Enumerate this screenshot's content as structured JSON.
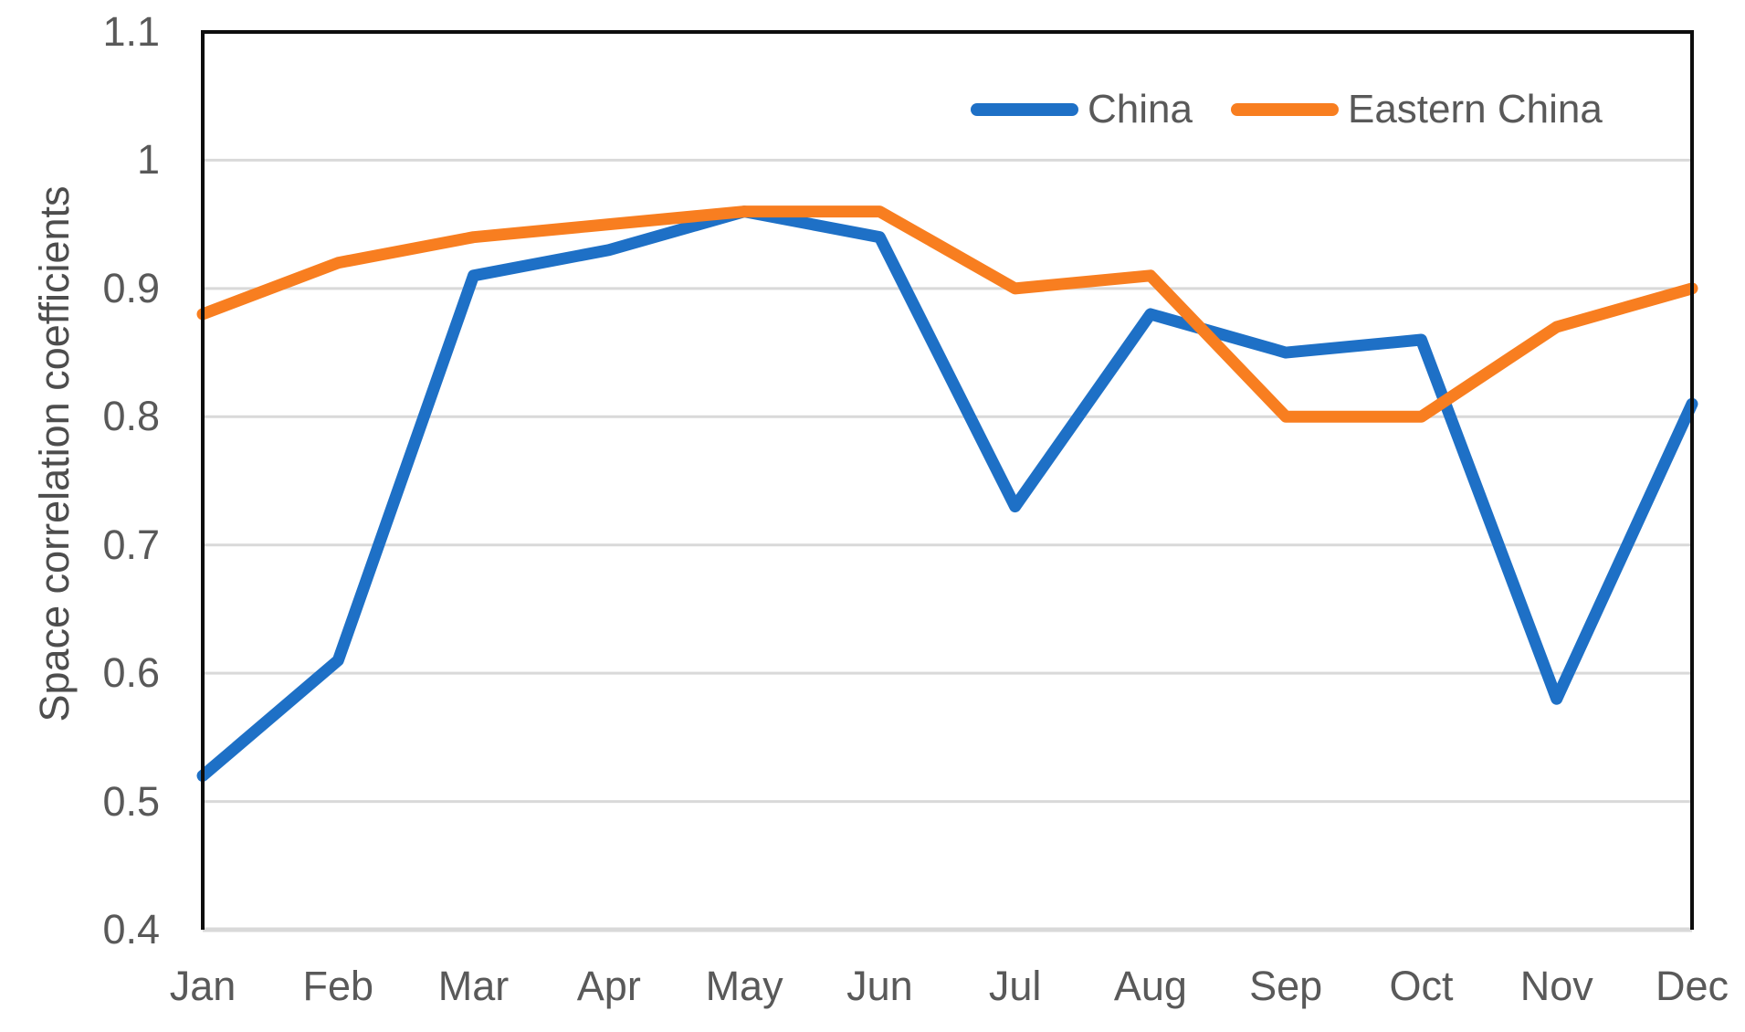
{
  "chart_data": {
    "type": "line",
    "title": "",
    "xlabel": "",
    "ylabel": "Space correlation coefficients",
    "categories": [
      "Jan",
      "Feb",
      "Mar",
      "Apr",
      "May",
      "Jun",
      "Jul",
      "Aug",
      "Sep",
      "Oct",
      "Nov",
      "Dec"
    ],
    "y_ticks": [
      "1.1",
      "1",
      "0.9",
      "0.8",
      "0.7",
      "0.6",
      "0.5",
      "0.4"
    ],
    "ylim": [
      0.4,
      1.1
    ],
    "grid": "horizontal-gridlines-on",
    "legend_position": "inside-top-right",
    "series": [
      {
        "name": "China",
        "color": "#1E70C6",
        "values": [
          0.52,
          0.61,
          0.91,
          0.93,
          0.96,
          0.94,
          0.73,
          0.88,
          0.85,
          0.86,
          0.58,
          0.81
        ]
      },
      {
        "name": "Eastern China",
        "color": "#F87E20",
        "values": [
          0.88,
          0.92,
          0.94,
          0.95,
          0.96,
          0.96,
          0.9,
          0.91,
          0.8,
          0.8,
          0.87,
          0.9
        ]
      }
    ]
  },
  "style_colors": {
    "gridline": "#D9D9D9",
    "axis_border": "#0d0d0d",
    "tick_text": "#595959"
  }
}
